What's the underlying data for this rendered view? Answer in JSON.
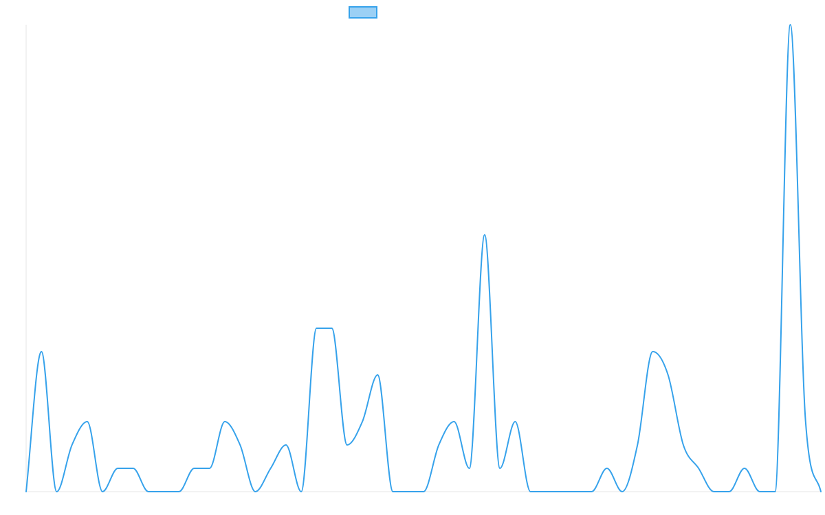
{
  "chart_data": {
    "type": "line",
    "title": "",
    "xlabel": "",
    "ylabel": "",
    "legend": {
      "placement": "top-center",
      "entries": [
        {
          "label": "",
          "fill": "#9BD0F5",
          "stroke": "#36A2EB"
        }
      ]
    },
    "ylim": [
      0,
      20
    ],
    "series": [
      {
        "name": "",
        "color": "#36A2EB",
        "values": [
          0,
          6,
          0,
          2,
          3,
          0,
          1,
          1,
          0,
          0,
          0,
          1,
          1,
          3,
          2,
          0,
          1,
          2,
          0,
          7,
          7,
          2,
          3,
          5,
          0,
          0,
          0,
          2,
          3,
          1,
          11,
          1,
          3,
          0,
          0,
          0,
          0,
          0,
          1,
          0,
          2,
          6,
          5,
          2,
          1,
          0,
          0,
          1,
          0,
          0,
          20,
          3,
          0
        ]
      }
    ],
    "grid": {
      "vertical": false,
      "horizontal": false
    }
  }
}
